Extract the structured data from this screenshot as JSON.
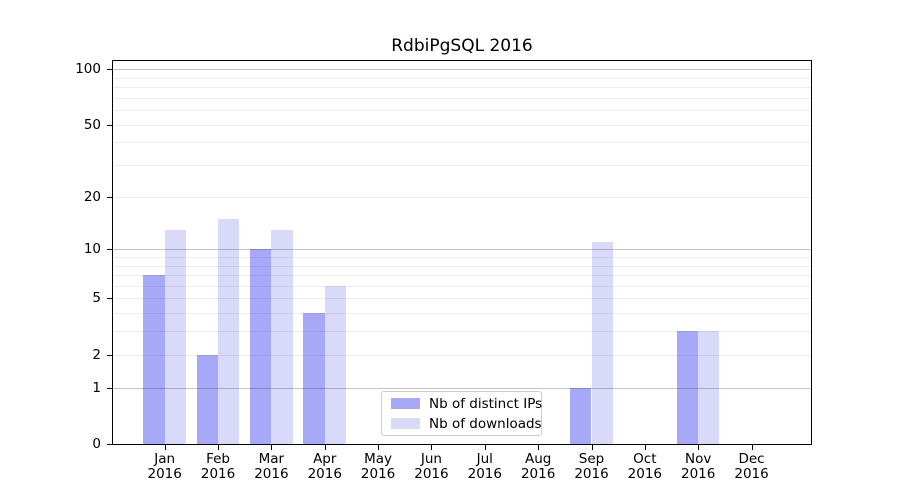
{
  "title": "RdbiPgSQL 2016",
  "chart_data": {
    "type": "bar",
    "title": "RdbiPgSQL 2016",
    "categories": [
      "Jan 2016",
      "Feb 2016",
      "Mar 2016",
      "Apr 2016",
      "May 2016",
      "Jun 2016",
      "Jul 2016",
      "Aug 2016",
      "Sep 2016",
      "Oct 2016",
      "Nov 2016",
      "Dec 2016"
    ],
    "month_labels": [
      "Jan",
      "Feb",
      "Mar",
      "Apr",
      "May",
      "Jun",
      "Jul",
      "Aug",
      "Sep",
      "Oct",
      "Nov",
      "Dec"
    ],
    "year": "2016",
    "series": [
      {
        "name": "Nb of distinct IPs",
        "color": "#a8a8f8",
        "values": [
          7,
          2,
          10,
          4,
          0,
          0,
          0,
          0,
          1,
          0,
          3,
          0
        ]
      },
      {
        "name": "Nb of downloads",
        "color": "#d9d9fa",
        "values": [
          13,
          15,
          13,
          6,
          0,
          0,
          0,
          0,
          11,
          0,
          3,
          0
        ]
      }
    ],
    "xlabel": "",
    "ylabel": "",
    "y_scale": "log1p",
    "y_ticks_labeled": [
      0,
      1,
      2,
      5,
      10,
      20,
      50,
      100
    ],
    "y_gridlines_major": [
      1,
      10,
      100
    ],
    "y_gridlines_minor": [
      2,
      3,
      4,
      5,
      6,
      7,
      8,
      9,
      20,
      30,
      40,
      50,
      60,
      70,
      80,
      90
    ],
    "ylim": [
      0,
      110
    ],
    "grid": true,
    "legend": {
      "entries": [
        "Nb of distinct IPs",
        "Nb of downloads"
      ],
      "position": "inside lower center"
    },
    "colors": {
      "distinct_ips": "#a8a8f8",
      "downloads": "#d9d9fa",
      "grid_major": "#c6c6c6",
      "grid_minor": "#efefef",
      "axis": "#000000"
    }
  }
}
